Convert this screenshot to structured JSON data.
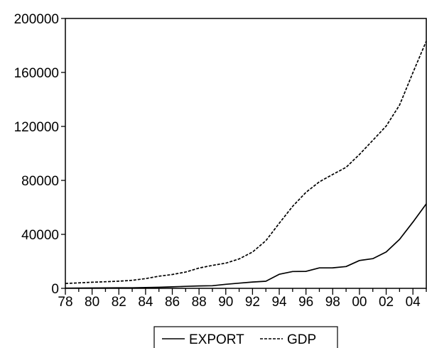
{
  "chart_data": {
    "type": "line",
    "title": "",
    "xlabel": "",
    "ylabel": "",
    "x": [
      1978,
      1979,
      1980,
      1981,
      1982,
      1983,
      1984,
      1985,
      1986,
      1987,
      1988,
      1989,
      1990,
      1991,
      1992,
      1993,
      1994,
      1995,
      1996,
      1997,
      1998,
      1999,
      2000,
      2001,
      2002,
      2003,
      2004,
      2005
    ],
    "xlim": [
      1978,
      2005
    ],
    "ylim": [
      0,
      200000
    ],
    "yticks": [
      0,
      40000,
      80000,
      120000,
      160000,
      200000
    ],
    "ytick_labels": [
      "0",
      "40000",
      "80000",
      "120000",
      "160000",
      "200000"
    ],
    "xticks": [
      1978,
      1980,
      1982,
      1984,
      1986,
      1988,
      1990,
      1992,
      1994,
      1996,
      1998,
      2000,
      2002,
      2004
    ],
    "xtick_labels": [
      "78",
      "80",
      "82",
      "84",
      "86",
      "88",
      "90",
      "92",
      "94",
      "96",
      "98",
      "00",
      "02",
      "04"
    ],
    "grid": false,
    "legend_position": "bottom",
    "series": [
      {
        "name": "EXPORT",
        "style": "solid",
        "color": "#000000",
        "values": [
          170,
          210,
          270,
          370,
          410,
          440,
          580,
          810,
          1080,
          1470,
          1770,
          1960,
          2990,
          3830,
          4680,
          5280,
          10420,
          12450,
          12580,
          15160,
          15220,
          16160,
          20630,
          22020,
          26950,
          36290,
          49100,
          62650
        ]
      },
      {
        "name": "GDP",
        "style": "dashed",
        "color": "#000000",
        "values": [
          3650,
          4060,
          4550,
          4890,
          5320,
          5960,
          7210,
          9020,
          10280,
          12060,
          15040,
          16990,
          18670,
          21780,
          26920,
          35330,
          48200,
          60790,
          71180,
          78970,
          84400,
          89680,
          99210,
          109660,
          120330,
          135820,
          159880,
          183200
        ]
      }
    ]
  }
}
